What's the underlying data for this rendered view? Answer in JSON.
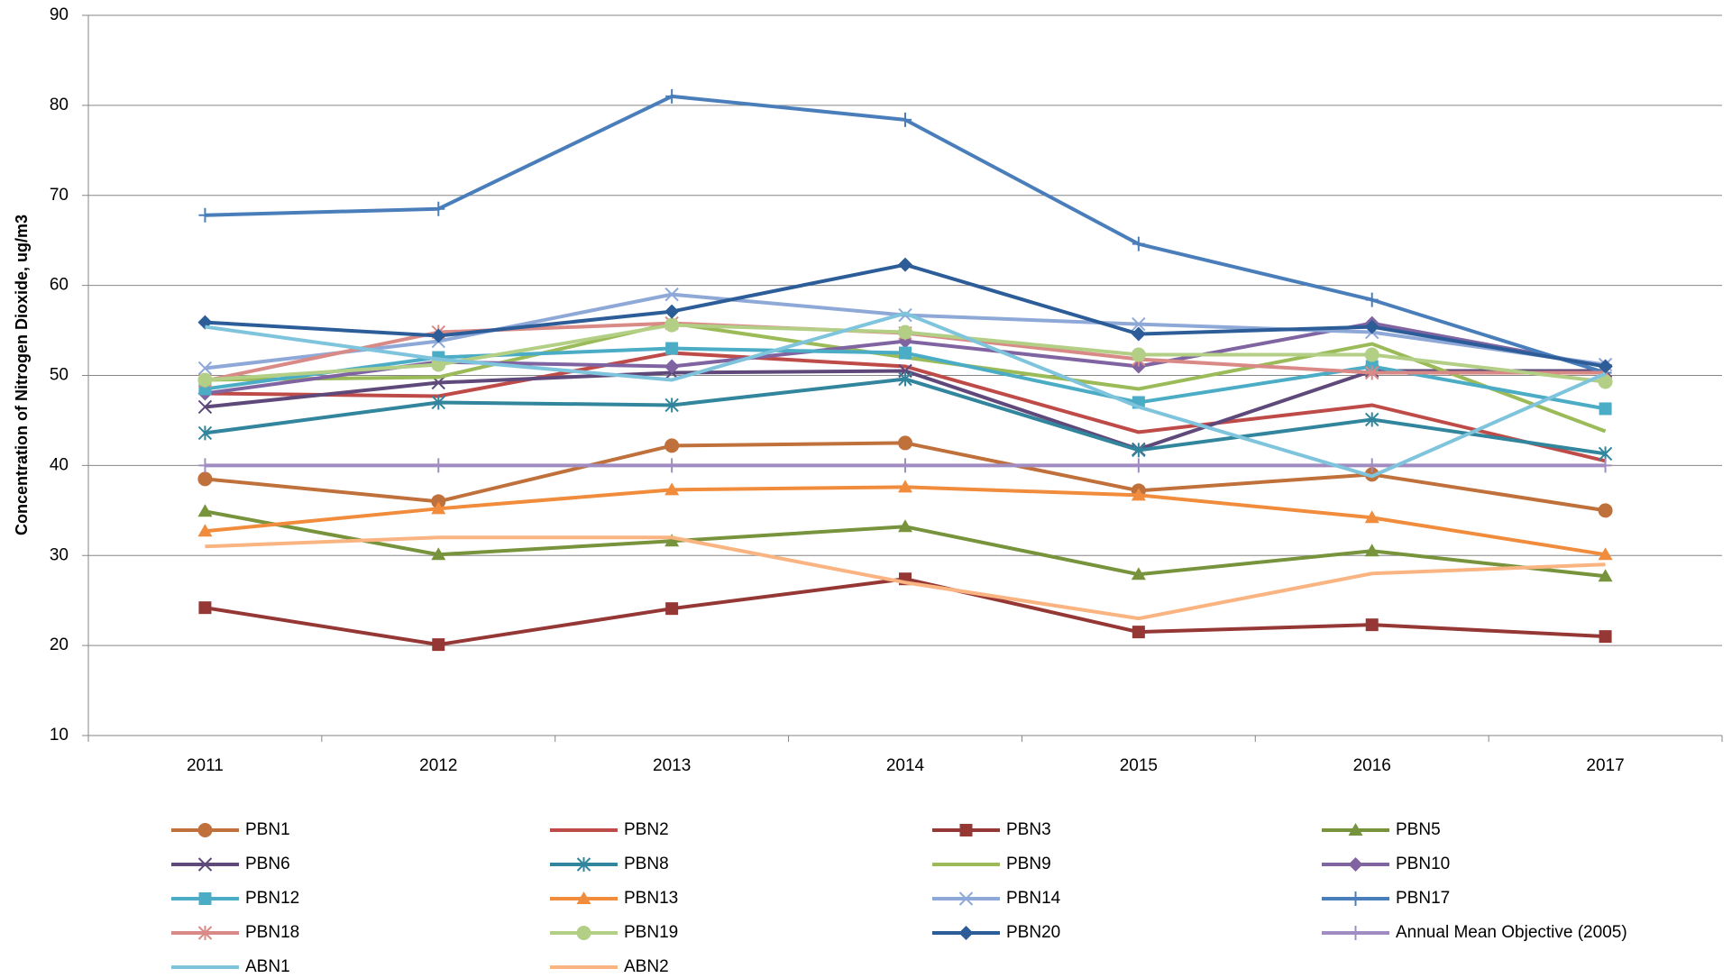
{
  "chart_data": {
    "type": "line",
    "y_label": "Concentration of Nitrogen Dioxide, ug/m3",
    "categories": [
      "2011",
      "2012",
      "2013",
      "2014",
      "2015",
      "2016",
      "2017"
    ],
    "ylim": [
      10,
      90
    ],
    "yticks": [
      10,
      20,
      30,
      40,
      50,
      60,
      70,
      80,
      90
    ],
    "grid": true,
    "series": [
      {
        "name": "PBN1",
        "color": "#c0703a",
        "marker": "circle",
        "values": [
          38.5,
          36,
          42.2,
          42.5,
          37.2,
          39,
          35
        ]
      },
      {
        "name": "PBN2",
        "color": "#be4b48",
        "marker": "none",
        "values": [
          48,
          47.7,
          52.5,
          51,
          43.7,
          46.7,
          40.5
        ]
      },
      {
        "name": "PBN3",
        "color": "#953735",
        "marker": "square",
        "values": [
          24.2,
          20.1,
          24.1,
          27.4,
          21.5,
          22.3,
          21
        ]
      },
      {
        "name": "PBN5",
        "color": "#77933c",
        "marker": "triangle",
        "values": [
          34.9,
          30.1,
          31.6,
          33.2,
          27.9,
          30.5,
          27.7
        ]
      },
      {
        "name": "PBN6",
        "color": "#5f497a",
        "marker": "x",
        "values": [
          46.5,
          49.2,
          50.3,
          50.5,
          41.8,
          50.5,
          50.5
        ]
      },
      {
        "name": "PBN8",
        "color": "#31859c",
        "marker": "star",
        "values": [
          43.6,
          47,
          46.7,
          49.6,
          41.7,
          45.1,
          41.3
        ]
      },
      {
        "name": "PBN9",
        "color": "#9bbb59",
        "marker": "none",
        "values": [
          49.5,
          49.8,
          55.8,
          52,
          48.5,
          53.5,
          43.8
        ]
      },
      {
        "name": "PBN10",
        "color": "#8064a2",
        "marker": "diamond",
        "values": [
          48,
          51.5,
          51,
          53.8,
          51,
          55.8,
          51
        ]
      },
      {
        "name": "PBN12",
        "color": "#4bacc6",
        "marker": "square",
        "values": [
          48.5,
          52,
          53,
          52.5,
          47,
          51,
          46.3
        ]
      },
      {
        "name": "PBN13",
        "color": "#f08c3c",
        "marker": "triangle",
        "values": [
          32.7,
          35.2,
          37.3,
          37.6,
          36.7,
          34.2,
          30.1
        ]
      },
      {
        "name": "PBN14",
        "color": "#8ea8d8",
        "marker": "x",
        "values": [
          50.8,
          53.8,
          59,
          56.7,
          55.7,
          54.8,
          51.2
        ]
      },
      {
        "name": "PBN17",
        "color": "#4a7ebb",
        "marker": "plus",
        "values": [
          67.8,
          68.5,
          81,
          78.4,
          64.6,
          58.4,
          50.3
        ]
      },
      {
        "name": "PBN18",
        "color": "#da8a86",
        "marker": "star",
        "values": [
          49.4,
          54.8,
          55.8,
          54.7,
          51.8,
          50.3,
          50.3
        ]
      },
      {
        "name": "PBN19",
        "color": "#b3cf86",
        "marker": "circle",
        "values": [
          49.5,
          51.2,
          55.6,
          54.8,
          52.3,
          52.3,
          49.3
        ]
      },
      {
        "name": "PBN20",
        "color": "#2c5d98",
        "marker": "diamond",
        "values": [
          55.9,
          54.4,
          57.1,
          62.3,
          54.6,
          55.4,
          51
        ]
      },
      {
        "name": "Annual Mean Objective (2005)",
        "color": "#a08cc0",
        "marker": "plus",
        "values": [
          40,
          40,
          40,
          40,
          40,
          40,
          40
        ]
      },
      {
        "name": "ABN1",
        "color": "#7ec4dc",
        "marker": "none",
        "values": [
          55.4,
          51.8,
          49.5,
          56.9,
          46.5,
          38.8,
          50.2
        ]
      },
      {
        "name": "ABN2",
        "color": "#f9b482",
        "marker": "none",
        "values": [
          31,
          32,
          32,
          27,
          23,
          28,
          29
        ]
      }
    ]
  }
}
